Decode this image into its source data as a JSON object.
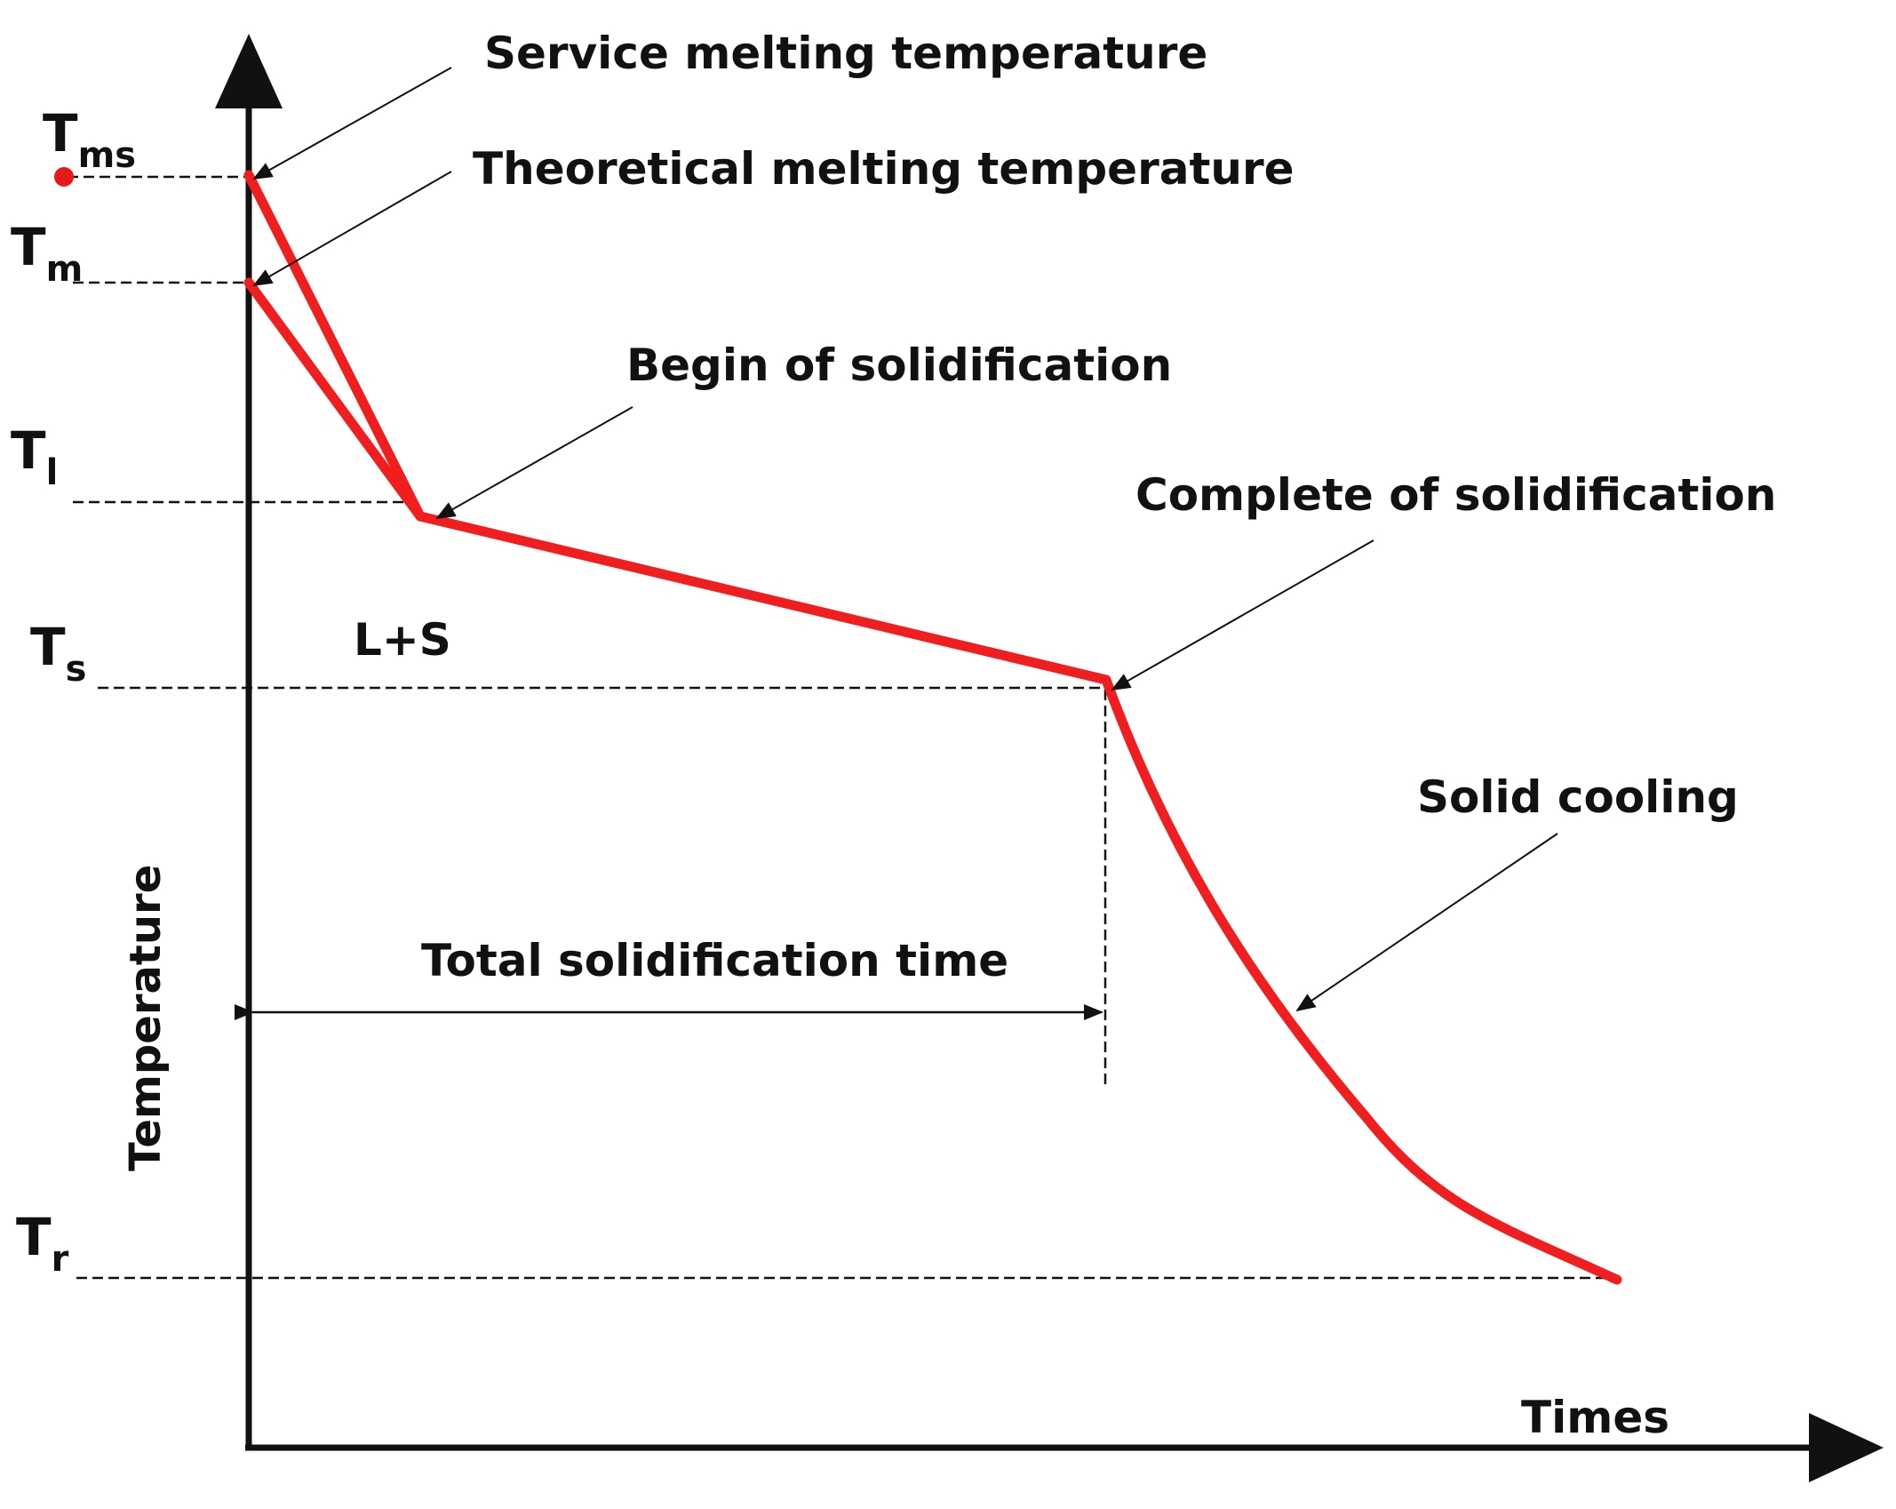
{
  "title_annotations": {
    "service_melting": "Service melting temperature",
    "theoretical_melting": "Theoretical  melting temperature",
    "begin_solidification": "Begin of solidification",
    "complete_solidification": "Complete of solidification",
    "solid_cooling": "Solid cooling",
    "total_time": "Total solidification time",
    "two_phase": "L+S"
  },
  "axes": {
    "y_title": "Temperature",
    "x_title": "Times"
  },
  "temperature_levels": [
    {
      "symbol": "T",
      "sub": "ms"
    },
    {
      "symbol": "T",
      "sub": "m"
    },
    {
      "symbol": "T",
      "sub": "l"
    },
    {
      "symbol": "T",
      "sub": "s"
    },
    {
      "symbol": "T",
      "sub": "r"
    }
  ],
  "colors": {
    "curve": "#f01e1e",
    "marker": "#e61919",
    "ink": "#111111"
  }
}
